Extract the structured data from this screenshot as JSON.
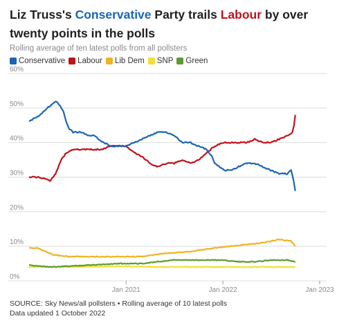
{
  "title": {
    "pre": "Liz Truss's ",
    "con": "Conservative",
    "mid": " Party trails ",
    "lab": "Labour",
    "post": " by over twenty points in the polls"
  },
  "subtitle": "Rolling average of ten latest polls from all pollsters",
  "footer": {
    "source": "SOURCE: Sky News/all pollsters • Rolling average of 10 latest polls",
    "updated": "Data updated 1 October 2022"
  },
  "colors": {
    "Conservative": "#1a65b3",
    "Labour": "#c0121a",
    "Lib Dem": "#f0b323",
    "SNP": "#f2e033",
    "Green": "#5d9a2f",
    "grid": "#dddddd",
    "axis_text": "#8a8a8a"
  },
  "chart_data": {
    "type": "line",
    "title": "Liz Truss's Conservative Party trails Labour by over twenty points in the polls",
    "subtitle": "Rolling average of ten latest polls from all pollsters",
    "xlabel": "",
    "ylabel": "",
    "xlim": [
      "2020-01-01",
      "2023-01-01"
    ],
    "ylim": [
      0,
      60
    ],
    "yticks": [
      "0%",
      "10%",
      "20%",
      "30%",
      "40%",
      "50%",
      "60%"
    ],
    "xticks": [
      {
        "date": "2021-01-01",
        "label": "Jan 2021"
      },
      {
        "date": "2022-01-01",
        "label": "Jan 2022"
      },
      {
        "date": "2023-01-01",
        "label": "Jan 2023"
      }
    ],
    "grid": true,
    "legend": "top-left",
    "series": [
      {
        "name": "Conservative",
        "points": [
          [
            "2020-01-01",
            46
          ],
          [
            "2020-01-20",
            47
          ],
          [
            "2020-02-10",
            48
          ],
          [
            "2020-02-25",
            49
          ],
          [
            "2020-03-10",
            50
          ],
          [
            "2020-03-25",
            51
          ],
          [
            "2020-04-10",
            52
          ],
          [
            "2020-04-25",
            51
          ],
          [
            "2020-05-10",
            49
          ],
          [
            "2020-05-20",
            46
          ],
          [
            "2020-06-01",
            44
          ],
          [
            "2020-06-15",
            43
          ],
          [
            "2020-07-01",
            43
          ],
          [
            "2020-07-20",
            43
          ],
          [
            "2020-08-10",
            42
          ],
          [
            "2020-09-01",
            42
          ],
          [
            "2020-09-20",
            41
          ],
          [
            "2020-10-10",
            40
          ],
          [
            "2020-11-01",
            39
          ],
          [
            "2020-12-01",
            39
          ],
          [
            "2021-01-01",
            39
          ],
          [
            "2021-02-01",
            40
          ],
          [
            "2021-03-01",
            41
          ],
          [
            "2021-04-01",
            42
          ],
          [
            "2021-05-01",
            43
          ],
          [
            "2021-06-01",
            43
          ],
          [
            "2021-07-01",
            42
          ],
          [
            "2021-08-01",
            40
          ],
          [
            "2021-09-01",
            40
          ],
          [
            "2021-10-01",
            39
          ],
          [
            "2021-11-01",
            38
          ],
          [
            "2021-11-20",
            36
          ],
          [
            "2021-12-01",
            34
          ],
          [
            "2021-12-20",
            33
          ],
          [
            "2022-01-05",
            32
          ],
          [
            "2022-02-01",
            32
          ],
          [
            "2022-03-01",
            33
          ],
          [
            "2022-04-01",
            34
          ],
          [
            "2022-05-01",
            34
          ],
          [
            "2022-06-01",
            33
          ],
          [
            "2022-07-01",
            32
          ],
          [
            "2022-08-01",
            31
          ],
          [
            "2022-09-01",
            31
          ],
          [
            "2022-09-15",
            32
          ],
          [
            "2022-09-25",
            29
          ],
          [
            "2022-10-01",
            26
          ]
        ]
      },
      {
        "name": "Labour",
        "points": [
          [
            "2020-01-01",
            30
          ],
          [
            "2020-02-01",
            30
          ],
          [
            "2020-03-01",
            29.5
          ],
          [
            "2020-03-20",
            29
          ],
          [
            "2020-04-10",
            31
          ],
          [
            "2020-05-01",
            35
          ],
          [
            "2020-05-20",
            37
          ],
          [
            "2020-06-15",
            38
          ],
          [
            "2020-08-01",
            38
          ],
          [
            "2020-10-01",
            38
          ],
          [
            "2020-11-01",
            39
          ],
          [
            "2020-12-01",
            39
          ],
          [
            "2021-01-01",
            39
          ],
          [
            "2021-02-01",
            37
          ],
          [
            "2021-03-01",
            36
          ],
          [
            "2021-04-01",
            34
          ],
          [
            "2021-05-01",
            33
          ],
          [
            "2021-06-01",
            34
          ],
          [
            "2021-07-01",
            34
          ],
          [
            "2021-08-01",
            35
          ],
          [
            "2021-09-01",
            34
          ],
          [
            "2021-10-01",
            35
          ],
          [
            "2021-11-01",
            37
          ],
          [
            "2021-12-01",
            39
          ],
          [
            "2022-01-01",
            40
          ],
          [
            "2022-02-01",
            40
          ],
          [
            "2022-03-01",
            40
          ],
          [
            "2022-04-01",
            40
          ],
          [
            "2022-05-01",
            41
          ],
          [
            "2022-06-01",
            40
          ],
          [
            "2022-07-01",
            40
          ],
          [
            "2022-08-01",
            41
          ],
          [
            "2022-09-01",
            42
          ],
          [
            "2022-09-20",
            43
          ],
          [
            "2022-09-26",
            45
          ],
          [
            "2022-10-01",
            48
          ]
        ]
      },
      {
        "name": "Lib Dem",
        "points": [
          [
            "2020-01-01",
            9.5
          ],
          [
            "2020-02-01",
            9.5
          ],
          [
            "2020-03-01",
            8.5
          ],
          [
            "2020-04-01",
            7.5
          ],
          [
            "2020-06-01",
            7
          ],
          [
            "2020-09-01",
            7
          ],
          [
            "2020-12-01",
            7
          ],
          [
            "2021-03-01",
            7
          ],
          [
            "2021-06-01",
            8
          ],
          [
            "2021-09-01",
            8.5
          ],
          [
            "2021-12-01",
            9.5
          ],
          [
            "2022-02-01",
            10
          ],
          [
            "2022-04-01",
            10.5
          ],
          [
            "2022-06-01",
            11
          ],
          [
            "2022-08-01",
            12
          ],
          [
            "2022-09-15",
            11.5
          ],
          [
            "2022-10-01",
            10
          ]
        ]
      },
      {
        "name": "SNP",
        "points": [
          [
            "2020-01-01",
            4
          ],
          [
            "2020-06-01",
            4
          ],
          [
            "2020-12-01",
            4.2
          ],
          [
            "2021-06-01",
            4
          ],
          [
            "2021-12-01",
            4
          ],
          [
            "2022-06-01",
            4
          ],
          [
            "2022-10-01",
            4
          ]
        ]
      },
      {
        "name": "Green",
        "points": [
          [
            "2020-01-01",
            4.5
          ],
          [
            "2020-04-01",
            4
          ],
          [
            "2020-08-01",
            4.5
          ],
          [
            "2020-12-01",
            5
          ],
          [
            "2021-03-01",
            5
          ],
          [
            "2021-05-01",
            5.5
          ],
          [
            "2021-07-01",
            6
          ],
          [
            "2021-09-01",
            6
          ],
          [
            "2021-11-01",
            6
          ],
          [
            "2022-01-01",
            6
          ],
          [
            "2022-03-01",
            5.5
          ],
          [
            "2022-05-01",
            5.5
          ],
          [
            "2022-07-01",
            6
          ],
          [
            "2022-09-01",
            6
          ],
          [
            "2022-10-01",
            5.5
          ]
        ]
      }
    ]
  }
}
